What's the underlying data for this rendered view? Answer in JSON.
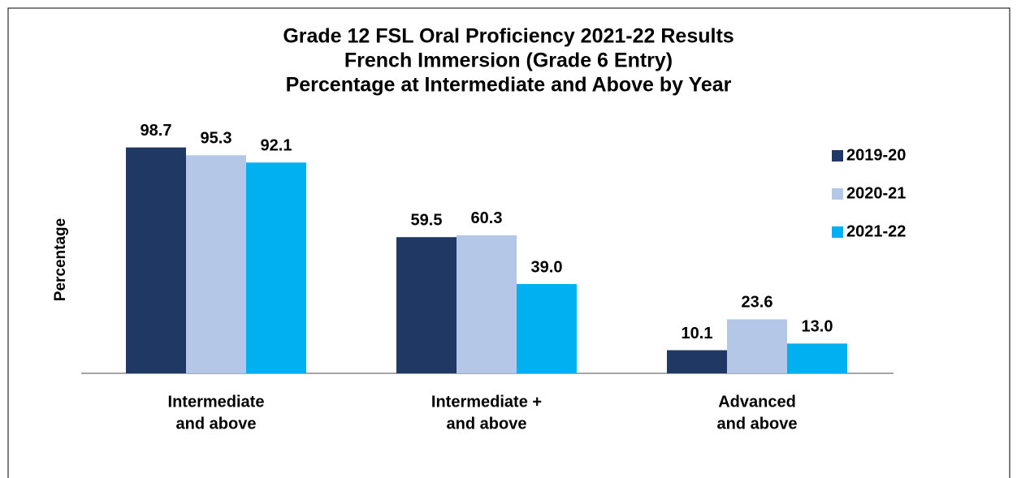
{
  "chart_data": {
    "type": "bar",
    "title": [
      "Grade 12 FSL Oral Proficiency 2021-22 Results",
      "French Immersion (Grade 6 Entry)",
      "Percentage at Intermediate and Above by Year"
    ],
    "y_label": "Percentage",
    "categories": [
      [
        "Intermediate",
        "and above"
      ],
      [
        "Intermediate +",
        "and above"
      ],
      [
        "Advanced",
        "and above"
      ]
    ],
    "series": [
      {
        "name": "2019-20",
        "color": "#203864",
        "values": [
          98.7,
          59.5,
          10.1
        ],
        "value_labels": [
          "98.7",
          "59.5",
          "10.1"
        ]
      },
      {
        "name": "2020-21",
        "color": "#b4c7e7",
        "values": [
          95.3,
          60.3,
          23.6
        ],
        "value_labels": [
          "95.3",
          "60.3",
          "23.6"
        ]
      },
      {
        "name": "2021-22",
        "color": "#00b0f0",
        "values": [
          92.1,
          39,
          13
        ],
        "value_labels": [
          "92.1",
          "39.0",
          "13.0"
        ]
      }
    ],
    "ylim": [
      0,
      100
    ],
    "legend": "right"
  }
}
